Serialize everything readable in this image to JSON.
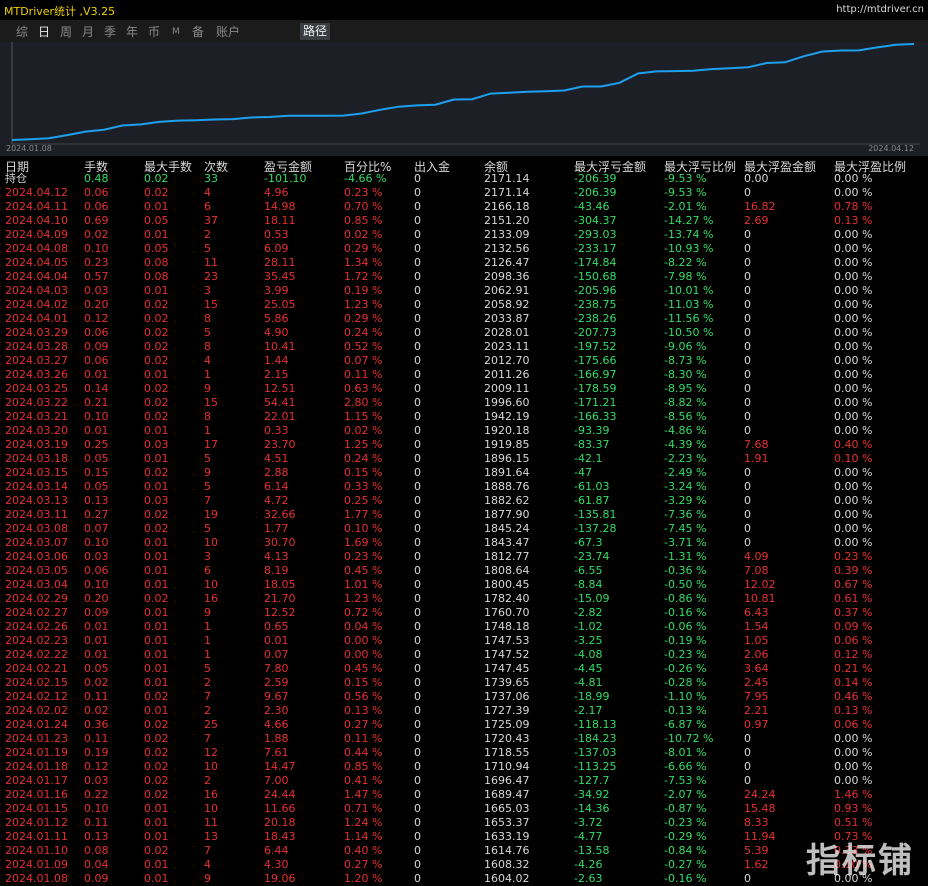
{
  "header": {
    "title": "MTDriver统计 ,V3.25",
    "url": "http://mtdriver.cn"
  },
  "tabs": [
    "综",
    "日",
    "周",
    "月",
    "季",
    "年",
    "币",
    "M",
    "备",
    "账户"
  ],
  "path_tab": "路径",
  "chart": {
    "start_label": "2024.01.08",
    "end_label": "2024.04.12"
  },
  "table": {
    "columns": [
      "日期",
      "手数",
      "最大手数",
      "次数",
      "盈亏金额",
      "百分比%",
      "出入金",
      "余额",
      "最大浮亏金额",
      "最大浮亏比例",
      "最大浮盈金额",
      "最大浮盈比例"
    ],
    "summary": [
      "持仓",
      "0.48",
      "0.02",
      "33",
      "-101.10",
      "-4.66 %",
      "0",
      "2171.14",
      "-206.39",
      "-9.53 %",
      "0.00",
      "0.00 %"
    ],
    "rows": [
      [
        "2024.04.12",
        "0.06",
        "0.02",
        "4",
        "4.96",
        "0.23 %",
        "0",
        "2171.14",
        "-206.39",
        "-9.53 %",
        "0",
        "0.00 %"
      ],
      [
        "2024.04.11",
        "0.06",
        "0.01",
        "6",
        "14.98",
        "0.70 %",
        "0",
        "2166.18",
        "-43.46",
        "-2.01 %",
        "16.82",
        "0.78 %"
      ],
      [
        "2024.04.10",
        "0.69",
        "0.05",
        "37",
        "18.11",
        "0.85 %",
        "0",
        "2151.20",
        "-304.37",
        "-14.27 %",
        "2.69",
        "0.13 %"
      ],
      [
        "2024.04.09",
        "0.02",
        "0.01",
        "2",
        "0.53",
        "0.02 %",
        "0",
        "2133.09",
        "-293.03",
        "-13.74 %",
        "0",
        "0.00 %"
      ],
      [
        "2024.04.08",
        "0.10",
        "0.05",
        "5",
        "6.09",
        "0.29 %",
        "0",
        "2132.56",
        "-233.17",
        "-10.93 %",
        "0",
        "0.00 %"
      ],
      [
        "2024.04.05",
        "0.23",
        "0.08",
        "11",
        "28.11",
        "1.34 %",
        "0",
        "2126.47",
        "-174.84",
        "-8.22 %",
        "0",
        "0.00 %"
      ],
      [
        "2024.04.04",
        "0.57",
        "0.08",
        "23",
        "35.45",
        "1.72 %",
        "0",
        "2098.36",
        "-150.68",
        "-7.98 %",
        "0",
        "0.00 %"
      ],
      [
        "2024.04.03",
        "0.03",
        "0.01",
        "3",
        "3.99",
        "0.19 %",
        "0",
        "2062.91",
        "-205.96",
        "-10.01 %",
        "0",
        "0.00 %"
      ],
      [
        "2024.04.02",
        "0.20",
        "0.02",
        "15",
        "25.05",
        "1.23 %",
        "0",
        "2058.92",
        "-238.75",
        "-11.03 %",
        "0",
        "0.00 %"
      ],
      [
        "2024.04.01",
        "0.12",
        "0.02",
        "8",
        "5.86",
        "0.29 %",
        "0",
        "2033.87",
        "-238.26",
        "-11.56 %",
        "0",
        "0.00 %"
      ],
      [
        "2024.03.29",
        "0.06",
        "0.02",
        "5",
        "4.90",
        "0.24 %",
        "0",
        "2028.01",
        "-207.73",
        "-10.50 %",
        "0",
        "0.00 %"
      ],
      [
        "2024.03.28",
        "0.09",
        "0.02",
        "8",
        "10.41",
        "0.52 %",
        "0",
        "2023.11",
        "-197.52",
        "-9.06 %",
        "0",
        "0.00 %"
      ],
      [
        "2024.03.27",
        "0.06",
        "0.02",
        "4",
        "1.44",
        "0.07 %",
        "0",
        "2012.70",
        "-175.66",
        "-8.73 %",
        "0",
        "0.00 %"
      ],
      [
        "2024.03.26",
        "0.01",
        "0.01",
        "1",
        "2.15",
        "0.11 %",
        "0",
        "2011.26",
        "-166.97",
        "-8.30 %",
        "0",
        "0.00 %"
      ],
      [
        "2024.03.25",
        "0.14",
        "0.02",
        "9",
        "12.51",
        "0.63 %",
        "0",
        "2009.11",
        "-178.59",
        "-8.95 %",
        "0",
        "0.00 %"
      ],
      [
        "2024.03.22",
        "0.21",
        "0.02",
        "15",
        "54.41",
        "2.80 %",
        "0",
        "1996.60",
        "-171.21",
        "-8.82 %",
        "0",
        "0.00 %"
      ],
      [
        "2024.03.21",
        "0.10",
        "0.02",
        "8",
        "22.01",
        "1.15 %",
        "0",
        "1942.19",
        "-166.33",
        "-8.56 %",
        "0",
        "0.00 %"
      ],
      [
        "2024.03.20",
        "0.01",
        "0.01",
        "1",
        "0.33",
        "0.02 %",
        "0",
        "1920.18",
        "-93.39",
        "-4.86 %",
        "0",
        "0.00 %"
      ],
      [
        "2024.03.19",
        "0.25",
        "0.03",
        "17",
        "23.70",
        "1.25 %",
        "0",
        "1919.85",
        "-83.37",
        "-4.39 %",
        "7.68",
        "0.40 %"
      ],
      [
        "2024.03.18",
        "0.05",
        "0.01",
        "5",
        "4.51",
        "0.24 %",
        "0",
        "1896.15",
        "-42.1",
        "-2.23 %",
        "1.91",
        "0.10 %"
      ],
      [
        "2024.03.15",
        "0.15",
        "0.02",
        "9",
        "2.88",
        "0.15 %",
        "0",
        "1891.64",
        "-47",
        "-2.49 %",
        "0",
        "0.00 %"
      ],
      [
        "2024.03.14",
        "0.05",
        "0.01",
        "5",
        "6.14",
        "0.33 %",
        "0",
        "1888.76",
        "-61.03",
        "-3.24 %",
        "0",
        "0.00 %"
      ],
      [
        "2024.03.13",
        "0.13",
        "0.03",
        "7",
        "4.72",
        "0.25 %",
        "0",
        "1882.62",
        "-61.87",
        "-3.29 %",
        "0",
        "0.00 %"
      ],
      [
        "2024.03.11",
        "0.27",
        "0.02",
        "19",
        "32.66",
        "1.77 %",
        "0",
        "1877.90",
        "-135.81",
        "-7.36 %",
        "0",
        "0.00 %"
      ],
      [
        "2024.03.08",
        "0.07",
        "0.02",
        "5",
        "1.77",
        "0.10 %",
        "0",
        "1845.24",
        "-137.28",
        "-7.45 %",
        "0",
        "0.00 %"
      ],
      [
        "2024.03.07",
        "0.10",
        "0.01",
        "10",
        "30.70",
        "1.69 %",
        "0",
        "1843.47",
        "-67.3",
        "-3.71 %",
        "0",
        "0.00 %"
      ],
      [
        "2024.03.06",
        "0.03",
        "0.01",
        "3",
        "4.13",
        "0.23 %",
        "0",
        "1812.77",
        "-23.74",
        "-1.31 %",
        "4.09",
        "0.23 %"
      ],
      [
        "2024.03.05",
        "0.06",
        "0.01",
        "6",
        "8.19",
        "0.45 %",
        "0",
        "1808.64",
        "-6.55",
        "-0.36 %",
        "7.08",
        "0.39 %"
      ],
      [
        "2024.03.04",
        "0.10",
        "0.01",
        "10",
        "18.05",
        "1.01 %",
        "0",
        "1800.45",
        "-8.84",
        "-0.50 %",
        "12.02",
        "0.67 %"
      ],
      [
        "2024.02.29",
        "0.20",
        "0.02",
        "16",
        "21.70",
        "1.23 %",
        "0",
        "1782.40",
        "-15.09",
        "-0.86 %",
        "10.81",
        "0.61 %"
      ],
      [
        "2024.02.27",
        "0.09",
        "0.01",
        "9",
        "12.52",
        "0.72 %",
        "0",
        "1760.70",
        "-2.82",
        "-0.16 %",
        "6.43",
        "0.37 %"
      ],
      [
        "2024.02.26",
        "0.01",
        "0.01",
        "1",
        "0.65",
        "0.04 %",
        "0",
        "1748.18",
        "-1.02",
        "-0.06 %",
        "1.54",
        "0.09 %"
      ],
      [
        "2024.02.23",
        "0.01",
        "0.01",
        "1",
        "0.01",
        "0.00 %",
        "0",
        "1747.53",
        "-3.25",
        "-0.19 %",
        "1.05",
        "0.06 %"
      ],
      [
        "2024.02.22",
        "0.01",
        "0.01",
        "1",
        "0.07",
        "0.00 %",
        "0",
        "1747.52",
        "-4.08",
        "-0.23 %",
        "2.06",
        "0.12 %"
      ],
      [
        "2024.02.21",
        "0.05",
        "0.01",
        "5",
        "7.80",
        "0.45 %",
        "0",
        "1747.45",
        "-4.45",
        "-0.26 %",
        "3.64",
        "0.21 %"
      ],
      [
        "2024.02.15",
        "0.02",
        "0.01",
        "2",
        "2.59",
        "0.15 %",
        "0",
        "1739.65",
        "-4.81",
        "-0.28 %",
        "2.45",
        "0.14 %"
      ],
      [
        "2024.02.12",
        "0.11",
        "0.02",
        "7",
        "9.67",
        "0.56 %",
        "0",
        "1737.06",
        "-18.99",
        "-1.10 %",
        "7.95",
        "0.46 %"
      ],
      [
        "2024.02.02",
        "0.02",
        "0.01",
        "2",
        "2.30",
        "0.13 %",
        "0",
        "1727.39",
        "-2.17",
        "-0.13 %",
        "2.21",
        "0.13 %"
      ],
      [
        "2024.01.24",
        "0.36",
        "0.02",
        "25",
        "4.66",
        "0.27 %",
        "0",
        "1725.09",
        "-118.13",
        "-6.87 %",
        "0.97",
        "0.06 %"
      ],
      [
        "2024.01.23",
        "0.11",
        "0.02",
        "7",
        "1.88",
        "0.11 %",
        "0",
        "1720.43",
        "-184.23",
        "-10.72 %",
        "0",
        "0.00 %"
      ],
      [
        "2024.01.19",
        "0.19",
        "0.02",
        "12",
        "7.61",
        "0.44 %",
        "0",
        "1718.55",
        "-137.03",
        "-8.01 %",
        "0",
        "0.00 %"
      ],
      [
        "2024.01.18",
        "0.12",
        "0.02",
        "10",
        "14.47",
        "0.85 %",
        "0",
        "1710.94",
        "-113.25",
        "-6.66 %",
        "0",
        "0.00 %"
      ],
      [
        "2024.01.17",
        "0.03",
        "0.02",
        "2",
        "7.00",
        "0.41 %",
        "0",
        "1696.47",
        "-127.7",
        "-7.53 %",
        "0",
        "0.00 %"
      ],
      [
        "2024.01.16",
        "0.22",
        "0.02",
        "16",
        "24.44",
        "1.47 %",
        "0",
        "1689.47",
        "-34.92",
        "-2.07 %",
        "24.24",
        "1.46 %"
      ],
      [
        "2024.01.15",
        "0.10",
        "0.01",
        "10",
        "11.66",
        "0.71 %",
        "0",
        "1665.03",
        "-14.36",
        "-0.87 %",
        "15.48",
        "0.93 %"
      ],
      [
        "2024.01.12",
        "0.11",
        "0.01",
        "11",
        "20.18",
        "1.24 %",
        "0",
        "1653.37",
        "-3.72",
        "-0.23 %",
        "8.33",
        "0.51 %"
      ],
      [
        "2024.01.11",
        "0.13",
        "0.01",
        "13",
        "18.43",
        "1.14 %",
        "0",
        "1633.19",
        "-4.77",
        "-0.29 %",
        "11.94",
        "0.73 %"
      ],
      [
        "2024.01.10",
        "0.08",
        "0.02",
        "7",
        "6.44",
        "0.40 %",
        "0",
        "1614.76",
        "-13.58",
        "-0.84 %",
        "5.39",
        "0.33 %"
      ],
      [
        "2024.01.09",
        "0.04",
        "0.01",
        "4",
        "4.30",
        "0.27 %",
        "0",
        "1608.32",
        "-4.26",
        "-0.27 %",
        "1.62",
        "0.10 %"
      ],
      [
        "2024.01.08",
        "0.09",
        "0.01",
        "9",
        "19.06",
        "1.20 %",
        "0",
        "1604.02",
        "-2.63",
        "-0.16 %",
        "0",
        "0.00 %"
      ]
    ]
  },
  "watermark": "指标铺"
}
